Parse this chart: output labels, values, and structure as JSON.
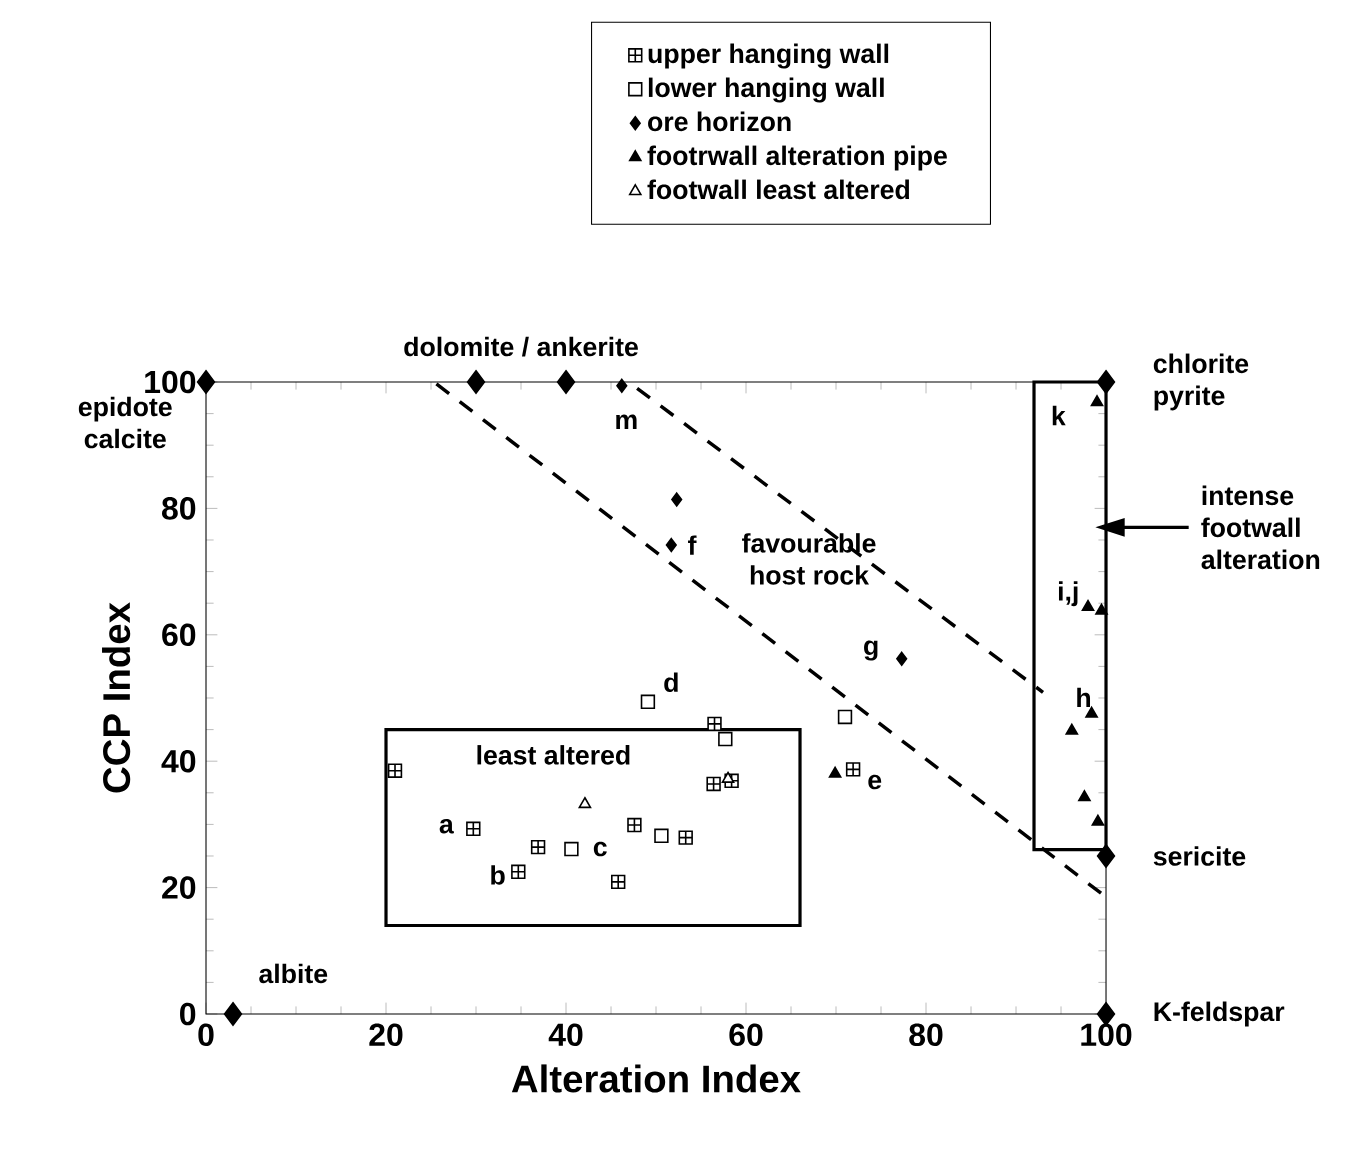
{
  "chart_data": {
    "type": "scatter",
    "xlabel": "Alteration Index",
    "ylabel": "CCP Index",
    "xlim": [
      0,
      100
    ],
    "ylim": [
      0,
      100
    ],
    "xticks": [
      0,
      20,
      40,
      60,
      80,
      100
    ],
    "yticks": [
      0,
      20,
      40,
      60,
      80,
      100
    ],
    "legend": "top",
    "grid": false,
    "series": [
      {
        "name": "upper hanging wall",
        "color": "#ffffff",
        "marker": "square",
        "x": [
          21.0,
          29.7,
          34.7,
          36.9,
          45.8,
          47.6,
          53.3,
          56.5,
          56.4,
          58.4,
          71.9
        ],
        "values": [
          38.5,
          29.3,
          22.5,
          26.4,
          20.9,
          29.9,
          27.9,
          45.9,
          36.4,
          36.9,
          38.7
        ]
      },
      {
        "name": "lower hanging wall",
        "color": "#ffffff",
        "x": [
          40.6,
          50.6,
          49.1,
          57.7,
          71.0
        ],
        "values": [
          26.1,
          28.2,
          49.4,
          43.5,
          47.0
        ]
      },
      {
        "name": "ore horizon",
        "color": "#000000",
        "marker": "diamond",
        "x": [
          46.2,
          52.3,
          51.7,
          77.3
        ],
        "values": [
          99.4,
          81.4,
          74.2,
          56.2
        ]
      },
      {
        "name": "footrwall alteration pipe",
        "color": "#000000",
        "marker": "triangle",
        "x": [
          69.9,
          99.0,
          98.0,
          99.5,
          98.4,
          96.2,
          97.6,
          99.1
        ],
        "values": [
          38.0,
          96.8,
          64.4,
          63.8,
          47.5,
          44.8,
          34.3,
          30.4
        ]
      },
      {
        "name": "footwall least altered",
        "color": "#ffffff",
        "marker": "triangle",
        "x": [
          42.1,
          58.0
        ],
        "values": [
          33.2,
          37.2
        ]
      },
      {
        "color": "#000000",
        "marker": "diamond",
        "x": [
          0,
          30,
          40,
          100,
          100,
          3,
          100
        ],
        "values": [
          100,
          100,
          100,
          100,
          25,
          0,
          0
        ]
      },
      {
        "type": "line",
        "color": "#000000",
        "marker": "none",
        "line_style": "dashed",
        "x": [
          25.6,
          100
        ],
        "values": [
          99.7,
          18.5
        ]
      },
      {
        "type": "line",
        "color": "#000000",
        "marker": "none",
        "line_style": "dashed",
        "x": [
          47.9,
          93
        ],
        "values": [
          99,
          50.9
        ]
      }
    ],
    "annotations": [
      {
        "text": "epidote calcite",
        "x": 0,
        "y": 100
      },
      "dolomite / ankerite",
      {
        "text": "chlorite pyrite",
        "x": 100,
        "y": 100
      },
      "intense footwall alteration",
      {
        "text": "sericite",
        "x": 100,
        "y": 25
      },
      {
        "text": "albite",
        "x": 3,
        "y": 0
      },
      {
        "text": "K-feldspar",
        "x": 100,
        "y": 0
      },
      "favourable host rock",
      "least altered",
      "a",
      "b",
      "c",
      "d",
      "e",
      "f",
      "g",
      "h",
      "i,j",
      "k",
      "m"
    ]
  }
}
